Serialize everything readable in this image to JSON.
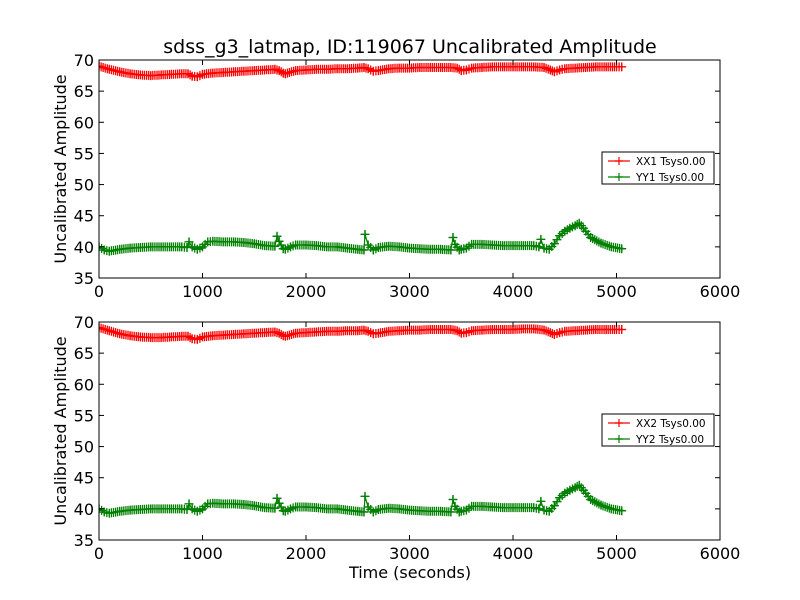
{
  "figure": {
    "title": "sdss_g3_latmap, ID:119067 Uncalibrated Amplitude",
    "xlabel": "Time (seconds)"
  },
  "chart_data": [
    {
      "type": "line",
      "title": "sdss_g3_latmap, ID:119067 Uncalibrated Amplitude",
      "xlabel": "",
      "ylabel": "Uncalibrated Amplitude",
      "xlim": [
        0,
        6000
      ],
      "ylim": [
        35,
        70
      ],
      "xticks": [
        "0",
        "1000",
        "2000",
        "3000",
        "4000",
        "5000",
        "6000"
      ],
      "yticks": [
        "35",
        "40",
        "45",
        "50",
        "55",
        "60",
        "65",
        "70"
      ],
      "grid": false,
      "legend": "center-right",
      "marker": "+",
      "series": [
        {
          "name": "XX1 Tsys0.00",
          "color": "#ff0000",
          "x": [
            0,
            100,
            200,
            300,
            400,
            500,
            600,
            700,
            800,
            860,
            900,
            950,
            1000,
            1100,
            1200,
            1300,
            1400,
            1500,
            1600,
            1700,
            1740,
            1780,
            1800,
            1900,
            2000,
            2100,
            2200,
            2300,
            2400,
            2500,
            2560,
            2600,
            2650,
            2700,
            2800,
            2900,
            3000,
            3100,
            3200,
            3300,
            3400,
            3460,
            3500,
            3550,
            3600,
            3700,
            3800,
            3900,
            4000,
            4100,
            4200,
            4300,
            4360,
            4400,
            4450,
            4500,
            4600,
            4700,
            4800,
            4900,
            5000,
            5050
          ],
          "y": [
            69.0,
            68.5,
            68.1,
            67.8,
            67.6,
            67.5,
            67.6,
            67.7,
            67.8,
            67.8,
            67.4,
            67.3,
            67.7,
            67.9,
            68.0,
            68.1,
            68.2,
            68.3,
            68.4,
            68.5,
            68.3,
            67.9,
            67.8,
            68.3,
            68.4,
            68.5,
            68.5,
            68.6,
            68.6,
            68.7,
            68.8,
            68.6,
            68.2,
            68.3,
            68.6,
            68.7,
            68.7,
            68.8,
            68.8,
            68.8,
            68.8,
            68.7,
            68.3,
            68.4,
            68.7,
            68.8,
            68.9,
            68.9,
            68.9,
            68.9,
            68.9,
            68.8,
            68.4,
            68.1,
            68.4,
            68.6,
            68.7,
            68.8,
            68.9,
            68.9,
            68.9,
            68.9
          ]
        },
        {
          "name": "YY1 Tsys0.00",
          "color": "#008000",
          "x": [
            0,
            50,
            100,
            200,
            300,
            400,
            500,
            600,
            700,
            800,
            850,
            870,
            900,
            950,
            1000,
            1050,
            1100,
            1200,
            1300,
            1400,
            1500,
            1600,
            1700,
            1720,
            1740,
            1780,
            1800,
            1850,
            1900,
            2000,
            2100,
            2200,
            2300,
            2400,
            2500,
            2560,
            2570,
            2600,
            2650,
            2700,
            2800,
            2900,
            3000,
            3100,
            3200,
            3300,
            3400,
            3420,
            3440,
            3480,
            3500,
            3550,
            3600,
            3700,
            3800,
            3900,
            4000,
            4100,
            4200,
            4250,
            4270,
            4300,
            4350,
            4400,
            4450,
            4500,
            4550,
            4600,
            4640,
            4680,
            4750,
            4850,
            4950,
            5050
          ],
          "y": [
            40.0,
            39.5,
            39.3,
            39.6,
            39.8,
            39.9,
            40.0,
            40.0,
            40.0,
            40.0,
            39.9,
            40.8,
            40.0,
            39.6,
            40.0,
            40.8,
            40.9,
            40.8,
            40.8,
            40.7,
            40.5,
            40.2,
            40.1,
            41.7,
            40.9,
            39.7,
            39.6,
            40.0,
            40.3,
            40.3,
            40.2,
            40.0,
            40.0,
            39.8,
            39.6,
            39.5,
            42.0,
            40.3,
            39.5,
            39.9,
            40.1,
            40.0,
            39.8,
            39.7,
            39.6,
            39.6,
            39.5,
            41.5,
            40.4,
            39.5,
            39.6,
            39.8,
            40.4,
            40.4,
            40.3,
            40.2,
            40.2,
            40.2,
            40.2,
            40.0,
            41.2,
            39.8,
            39.6,
            40.5,
            41.8,
            42.5,
            43.0,
            43.4,
            43.8,
            43.0,
            41.5,
            40.6,
            40.0,
            39.7
          ]
        }
      ]
    },
    {
      "type": "line",
      "title": "",
      "xlabel": "Time (seconds)",
      "ylabel": "Uncalibrated Amplitude",
      "xlim": [
        0,
        6000
      ],
      "ylim": [
        35,
        70
      ],
      "xticks": [
        "0",
        "1000",
        "2000",
        "3000",
        "4000",
        "5000",
        "6000"
      ],
      "yticks": [
        "35",
        "40",
        "45",
        "50",
        "55",
        "60",
        "65",
        "70"
      ],
      "grid": false,
      "legend": "center-right",
      "marker": "+",
      "series": [
        {
          "name": "XX2 Tsys0.00",
          "color": "#ff0000",
          "x": [
            0,
            100,
            200,
            300,
            400,
            500,
            600,
            700,
            800,
            860,
            900,
            950,
            1000,
            1100,
            1200,
            1300,
            1400,
            1500,
            1600,
            1700,
            1740,
            1780,
            1800,
            1900,
            2000,
            2100,
            2200,
            2300,
            2400,
            2500,
            2560,
            2600,
            2650,
            2700,
            2800,
            2900,
            3000,
            3100,
            3200,
            3300,
            3400,
            3460,
            3500,
            3550,
            3600,
            3700,
            3800,
            3900,
            4000,
            4100,
            4200,
            4300,
            4360,
            4400,
            4450,
            4500,
            4600,
            4700,
            4800,
            4900,
            5000,
            5050
          ],
          "y": [
            69.1,
            68.6,
            68.1,
            67.8,
            67.6,
            67.5,
            67.5,
            67.6,
            67.7,
            67.7,
            67.3,
            67.2,
            67.6,
            67.8,
            67.9,
            68.0,
            68.1,
            68.2,
            68.3,
            68.4,
            68.2,
            67.8,
            67.7,
            68.2,
            68.3,
            68.4,
            68.5,
            68.5,
            68.6,
            68.6,
            68.7,
            68.5,
            68.1,
            68.2,
            68.5,
            68.6,
            68.7,
            68.7,
            68.8,
            68.8,
            68.8,
            68.6,
            68.2,
            68.3,
            68.6,
            68.7,
            68.8,
            68.8,
            68.8,
            68.9,
            68.9,
            68.7,
            68.3,
            68.0,
            68.3,
            68.5,
            68.6,
            68.7,
            68.8,
            68.8,
            68.8,
            68.8
          ]
        },
        {
          "name": "YY2 Tsys0.00",
          "color": "#008000",
          "x": [
            0,
            50,
            100,
            200,
            300,
            400,
            500,
            600,
            700,
            800,
            850,
            870,
            900,
            950,
            1000,
            1050,
            1100,
            1200,
            1300,
            1400,
            1500,
            1600,
            1700,
            1720,
            1740,
            1780,
            1800,
            1850,
            1900,
            2000,
            2100,
            2200,
            2300,
            2400,
            2500,
            2560,
            2570,
            2600,
            2650,
            2700,
            2800,
            2900,
            3000,
            3100,
            3200,
            3300,
            3400,
            3420,
            3440,
            3480,
            3500,
            3550,
            3600,
            3700,
            3800,
            3900,
            4000,
            4100,
            4200,
            4250,
            4270,
            4300,
            4350,
            4400,
            4450,
            4500,
            4550,
            4600,
            4640,
            4680,
            4750,
            4850,
            4950,
            5050
          ],
          "y": [
            40.0,
            39.5,
            39.3,
            39.6,
            39.8,
            39.9,
            40.0,
            40.0,
            40.0,
            40.0,
            39.9,
            40.8,
            40.0,
            39.6,
            40.0,
            40.8,
            40.9,
            40.8,
            40.8,
            40.7,
            40.5,
            40.2,
            40.1,
            41.7,
            40.9,
            39.7,
            39.6,
            40.0,
            40.3,
            40.3,
            40.2,
            40.0,
            40.0,
            39.8,
            39.6,
            39.5,
            42.0,
            40.3,
            39.5,
            39.9,
            40.1,
            40.0,
            39.8,
            39.7,
            39.6,
            39.6,
            39.5,
            41.5,
            40.4,
            39.5,
            39.6,
            39.8,
            40.4,
            40.4,
            40.3,
            40.2,
            40.2,
            40.2,
            40.2,
            40.0,
            41.2,
            39.8,
            39.6,
            40.5,
            41.8,
            42.5,
            43.0,
            43.4,
            43.8,
            43.0,
            41.5,
            40.6,
            40.0,
            39.7
          ]
        }
      ]
    }
  ]
}
